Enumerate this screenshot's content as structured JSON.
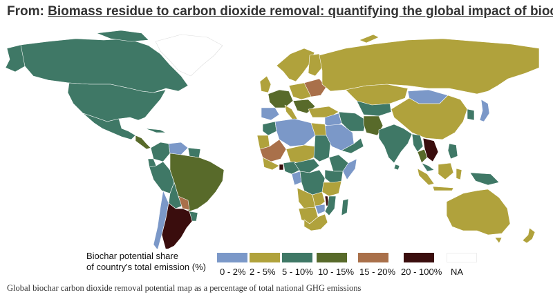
{
  "header": {
    "prefix": "From: ",
    "article_title": "Biomass residue to carbon dioxide removal: quantifying the global impact of biochar"
  },
  "legend": {
    "title_line1": "Biochar potential share",
    "title_line2": "of country's total emission (%)",
    "items": [
      {
        "label": "0 - 2%",
        "color": "#7b98c8"
      },
      {
        "label": "2 - 5%",
        "color": "#b0a23c"
      },
      {
        "label": "5 - 10%",
        "color": "#3f7866"
      },
      {
        "label": "10 - 15%",
        "color": "#586a2a"
      },
      {
        "label": "15 - 20%",
        "color": "#a9704a"
      },
      {
        "label": "20 - 100%",
        "color": "#3a0d0d"
      },
      {
        "label": "NA",
        "color": "#ffffff"
      }
    ]
  },
  "caption": "Global biochar carbon dioxide removal potential map as a percentage of total national GHG emissions"
}
